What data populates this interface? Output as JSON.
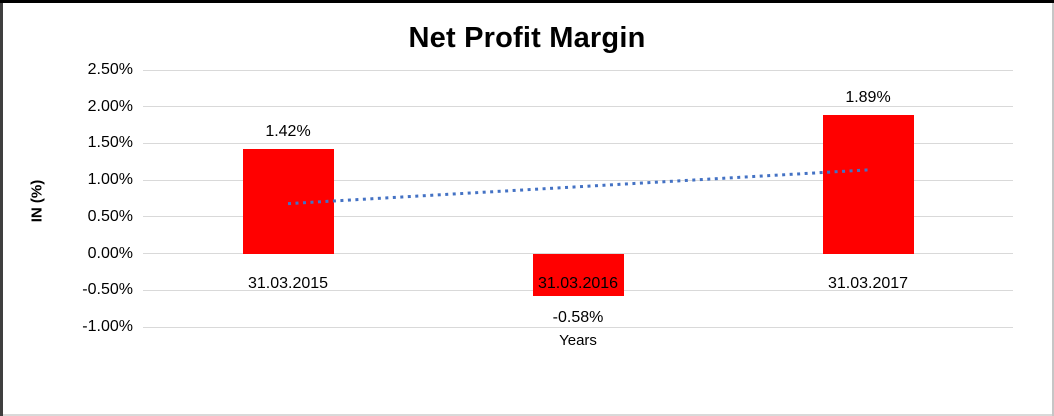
{
  "chart_data": {
    "type": "bar",
    "title": "Net Profit Margin",
    "xlabel": "Years",
    "ylabel": "IN (%)",
    "categories": [
      "31.03.2015",
      "31.03.2016",
      "31.03.2017"
    ],
    "values": [
      1.42,
      -0.58,
      1.89
    ],
    "labels": [
      "1.42%",
      "-0.58%",
      "1.89%"
    ],
    "ylim": [
      -1.0,
      2.5
    ],
    "y_ticks": [
      {
        "label": "2.50%",
        "value": 2.5
      },
      {
        "label": "2.00%",
        "value": 2.0
      },
      {
        "label": "1.50%",
        "value": 1.5
      },
      {
        "label": "1.00%",
        "value": 1.0
      },
      {
        "label": "0.50%",
        "value": 0.5
      },
      {
        "label": "0.00%",
        "value": 0.0
      },
      {
        "label": "-0.50%",
        "value": -0.5
      },
      {
        "label": "-1.00%",
        "value": -1.0
      }
    ],
    "grid": true,
    "legend": false,
    "trendline": {
      "type": "linear",
      "style": "dotted",
      "start": 0.68,
      "end": 1.14
    }
  },
  "colors": {
    "bar": "#FF0000",
    "trendline": "#4472C4",
    "gridline": "#D9D9D9",
    "text": "#000000"
  }
}
